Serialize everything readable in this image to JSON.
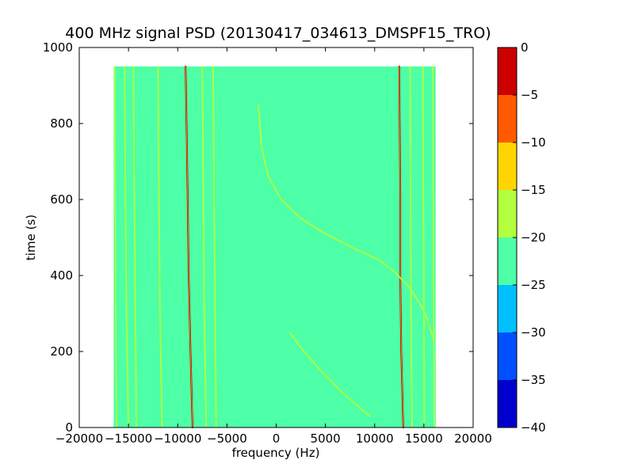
{
  "chart_data": {
    "type": "heatmap",
    "title": "400 MHz signal PSD (20130417_034613_DMSPF15_TRO)",
    "xlabel": "frequency (Hz)",
    "ylabel": "time (s)",
    "xlim": [
      -20000,
      20000
    ],
    "ylim": [
      0,
      1000
    ],
    "x_ticks": [
      -20000,
      -15000,
      -10000,
      -5000,
      0,
      5000,
      10000,
      15000,
      20000
    ],
    "x_tick_labels": [
      "−20000",
      "−15000",
      "−10000",
      "−5000",
      "0",
      "5000",
      "10000",
      "15000",
      "20000"
    ],
    "y_ticks": [
      0,
      200,
      400,
      600,
      800,
      1000
    ],
    "y_tick_labels": [
      "0",
      "200",
      "400",
      "600",
      "800",
      "1000"
    ],
    "data_extent": {
      "x": [
        -16500,
        16200
      ],
      "y": [
        0,
        950
      ]
    },
    "background_level": -22.5,
    "colorbar": {
      "range": [
        -40,
        0
      ],
      "levels": [
        -40,
        -35,
        -30,
        -25,
        -20,
        -15,
        -10,
        -5,
        0
      ],
      "tick_labels": [
        "−40",
        "−35",
        "−30",
        "−25",
        "−20",
        "−15",
        "−10",
        "−5",
        "0"
      ],
      "colors": [
        "#0000cc",
        "#0050ff",
        "#00c0ff",
        "#4dffa6",
        "#b3ff3d",
        "#ffd400",
        "#ff5a00",
        "#cc0000"
      ]
    },
    "traces": [
      {
        "level": -2,
        "points": [
          [
            -9200,
            950
          ],
          [
            -9100,
            800
          ],
          [
            -9000,
            620
          ],
          [
            -8900,
            420
          ],
          [
            -8700,
            200
          ],
          [
            -8500,
            0
          ]
        ]
      },
      {
        "level": -2,
        "points": [
          [
            12500,
            950
          ],
          [
            12550,
            800
          ],
          [
            12600,
            600
          ],
          [
            12600,
            400
          ],
          [
            12700,
            200
          ],
          [
            12900,
            0
          ]
        ]
      },
      {
        "level": -15,
        "points": [
          [
            -1800,
            850
          ],
          [
            -1500,
            740
          ],
          [
            -800,
            660
          ],
          [
            500,
            600
          ],
          [
            2500,
            550
          ],
          [
            5000,
            510
          ],
          [
            8000,
            470
          ],
          [
            10500,
            440
          ],
          [
            12000,
            410
          ],
          [
            13500,
            370
          ],
          [
            14500,
            330
          ],
          [
            15300,
            290
          ],
          [
            16000,
            230
          ]
        ]
      },
      {
        "level": -15,
        "points": [
          [
            1400,
            250
          ],
          [
            2500,
            210
          ],
          [
            4500,
            150
          ],
          [
            7000,
            85
          ],
          [
            9500,
            30
          ]
        ]
      },
      {
        "level": -15,
        "points": [
          [
            -16400,
            950
          ],
          [
            -16350,
            600
          ],
          [
            -16300,
            300
          ],
          [
            -16200,
            0
          ]
        ]
      },
      {
        "level": -15,
        "points": [
          [
            -15400,
            950
          ],
          [
            -15300,
            600
          ],
          [
            -15200,
            300
          ],
          [
            -15000,
            0
          ]
        ]
      },
      {
        "level": -15,
        "points": [
          [
            -14500,
            950
          ],
          [
            -14400,
            600
          ],
          [
            -14300,
            300
          ],
          [
            -14200,
            0
          ]
        ]
      },
      {
        "level": -15,
        "points": [
          [
            -12000,
            950
          ],
          [
            -11900,
            600
          ],
          [
            -11800,
            300
          ],
          [
            -11600,
            0
          ]
        ]
      },
      {
        "level": -15,
        "points": [
          [
            -7500,
            950
          ],
          [
            -7400,
            600
          ],
          [
            -7300,
            300
          ],
          [
            -7100,
            0
          ]
        ]
      },
      {
        "level": -15,
        "points": [
          [
            -6400,
            950
          ],
          [
            -6300,
            600
          ],
          [
            -6200,
            300
          ],
          [
            -6100,
            0
          ]
        ]
      },
      {
        "level": -15,
        "points": [
          [
            13600,
            950
          ],
          [
            13650,
            600
          ],
          [
            13700,
            300
          ],
          [
            13800,
            0
          ]
        ]
      },
      {
        "level": -15,
        "points": [
          [
            14900,
            950
          ],
          [
            14950,
            600
          ],
          [
            15000,
            300
          ],
          [
            15050,
            0
          ]
        ]
      },
      {
        "level": -15,
        "points": [
          [
            15900,
            950
          ],
          [
            15950,
            600
          ],
          [
            16000,
            300
          ],
          [
            16050,
            0
          ]
        ]
      }
    ]
  }
}
